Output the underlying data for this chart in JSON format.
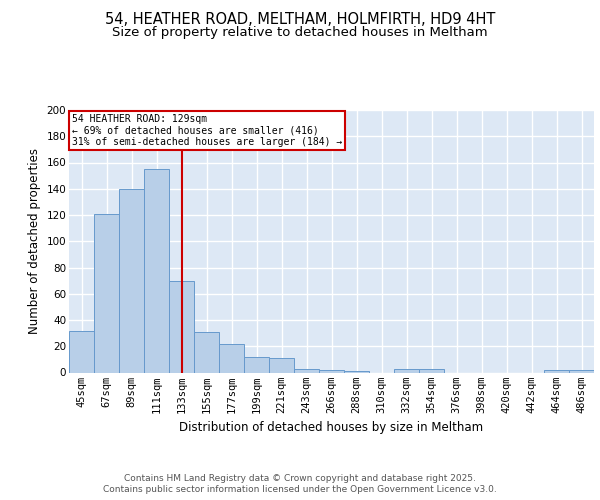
{
  "title": "54, HEATHER ROAD, MELTHAM, HOLMFIRTH, HD9 4HT",
  "subtitle": "Size of property relative to detached houses in Meltham",
  "xlabel": "Distribution of detached houses by size in Meltham",
  "ylabel": "Number of detached properties",
  "categories": [
    "45sqm",
    "67sqm",
    "89sqm",
    "111sqm",
    "133sqm",
    "155sqm",
    "177sqm",
    "199sqm",
    "221sqm",
    "243sqm",
    "266sqm",
    "288sqm",
    "310sqm",
    "332sqm",
    "354sqm",
    "376sqm",
    "398sqm",
    "420sqm",
    "442sqm",
    "464sqm",
    "486sqm"
  ],
  "values": [
    32,
    121,
    140,
    155,
    70,
    31,
    22,
    12,
    11,
    3,
    2,
    1,
    0,
    3,
    3,
    0,
    0,
    0,
    0,
    2,
    2
  ],
  "bar_color": "#b8cfe8",
  "bar_edge_color": "#6699cc",
  "background_color": "#dde8f5",
  "grid_color": "#ffffff",
  "annotation_text": "54 HEATHER ROAD: 129sqm\n← 69% of detached houses are smaller (416)\n31% of semi-detached houses are larger (184) →",
  "annotation_box_color": "#ffffff",
  "annotation_box_edge_color": "#cc0000",
  "vline_x": 4,
  "vline_color": "#cc0000",
  "ylim": [
    0,
    200
  ],
  "yticks": [
    0,
    20,
    40,
    60,
    80,
    100,
    120,
    140,
    160,
    180,
    200
  ],
  "footer": "Contains HM Land Registry data © Crown copyright and database right 2025.\nContains public sector information licensed under the Open Government Licence v3.0.",
  "title_fontsize": 10.5,
  "subtitle_fontsize": 9.5,
  "axis_fontsize": 8.5,
  "tick_fontsize": 7.5,
  "footer_fontsize": 6.5
}
